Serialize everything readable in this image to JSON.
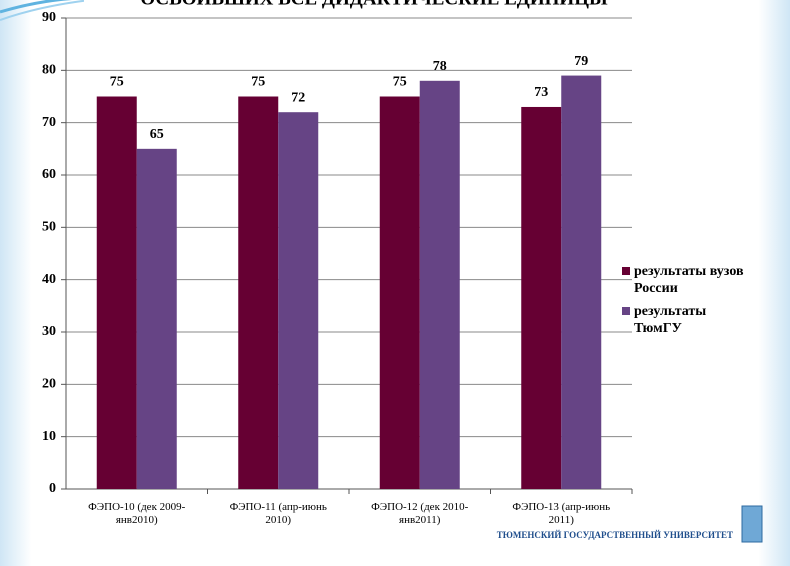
{
  "chart_data": {
    "type": "bar",
    "title": "ОСВОИВШИХ ВСЕ ДИДАКТИЧЕСКИЕ ЕДИНИЦЫ",
    "categories": [
      "ФЭПО-10 (дек 2009-\nянв2010)",
      "ФЭПО-11 (апр-июнь\n2010)",
      "ФЭПО-12 (дек 2010-\nянв2011)",
      "ФЭПО-13 (апр-июнь\n2011)"
    ],
    "series": [
      {
        "name": "результаты вузов\nРоссии",
        "color": "#660033",
        "values": [
          75,
          75,
          75,
          73
        ]
      },
      {
        "name": "результаты\nТюмГУ",
        "color": "#664485",
        "values": [
          65,
          72,
          78,
          79
        ]
      }
    ],
    "ylim": [
      0,
      90
    ],
    "yticks": [
      0,
      10,
      20,
      30,
      40,
      50,
      60,
      70,
      80,
      90
    ],
    "grid": true,
    "legend": "right",
    "footer": "ТЮМЕНСКИЙ ГОСУДАРСТВЕННЫЙ УНИВЕРСИТЕТ"
  }
}
